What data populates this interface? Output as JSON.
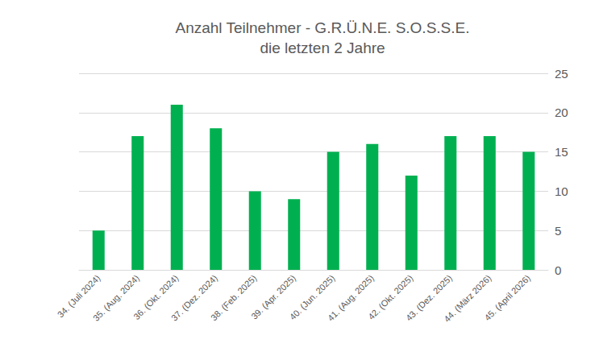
{
  "chart_data": {
    "type": "bar",
    "title": "Anzahl Teilnehmer - G.R.Ü.N.E. S.O.S.S.E.",
    "subtitle": "die letzten 2 Jahre",
    "categories": [
      "34. (Juli 2024)",
      "35. (Aug. 2024)",
      "36. (Okt. 2024)",
      "37. (Dez. 2024)",
      "38. (Feb. 2025)",
      "39. (Apr. 2025)",
      "40. (Jun. 2025)",
      "41. (Aug. 2025)",
      "42. (Okt. 2025)",
      "43. (Dez. 2025)",
      "44. (März 2026)",
      "45. (April 2026)"
    ],
    "values": [
      5,
      17,
      21,
      18,
      10,
      9,
      15,
      16,
      12,
      17,
      17,
      15
    ],
    "color": "#00b050",
    "ylim": [
      0,
      25
    ],
    "yticks": [
      0,
      5,
      10,
      15,
      20,
      25
    ],
    "grid": true
  }
}
